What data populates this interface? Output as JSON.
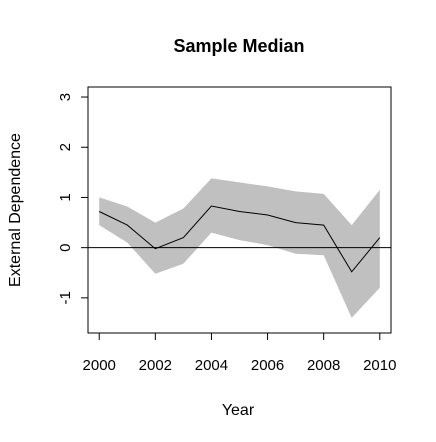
{
  "chart_data": {
    "type": "line",
    "title": "Sample Median",
    "xlabel": "Year",
    "ylabel": "External Dependence",
    "xlim": [
      1999.6,
      2010.4
    ],
    "ylim": [
      -1.7,
      3.2
    ],
    "x": [
      2000,
      2001,
      2002,
      2003,
      2004,
      2005,
      2006,
      2007,
      2008,
      2009,
      2010
    ],
    "series": [
      {
        "values": [
          0.72,
          0.45,
          -0.02,
          0.2,
          0.83,
          0.72,
          0.65,
          0.5,
          0.45,
          -0.48,
          0.2
        ],
        "upper": [
          1.0,
          0.82,
          0.5,
          0.78,
          1.38,
          1.3,
          1.22,
          1.12,
          1.07,
          0.45,
          1.15
        ],
        "lower": [
          0.45,
          0.1,
          -0.52,
          -0.32,
          0.3,
          0.15,
          0.05,
          -0.12,
          -0.15,
          -1.4,
          -0.8
        ]
      }
    ],
    "reference_line_y": 0,
    "x_ticks": [
      "2000",
      "2002",
      "2004",
      "2006",
      "2008",
      "2010"
    ],
    "y_ticks": [
      "-1",
      "0",
      "1",
      "2",
      "3"
    ],
    "grid": false,
    "colors": {
      "band": "#c0c0c0",
      "line": "#000000",
      "frame": "#000000"
    }
  }
}
